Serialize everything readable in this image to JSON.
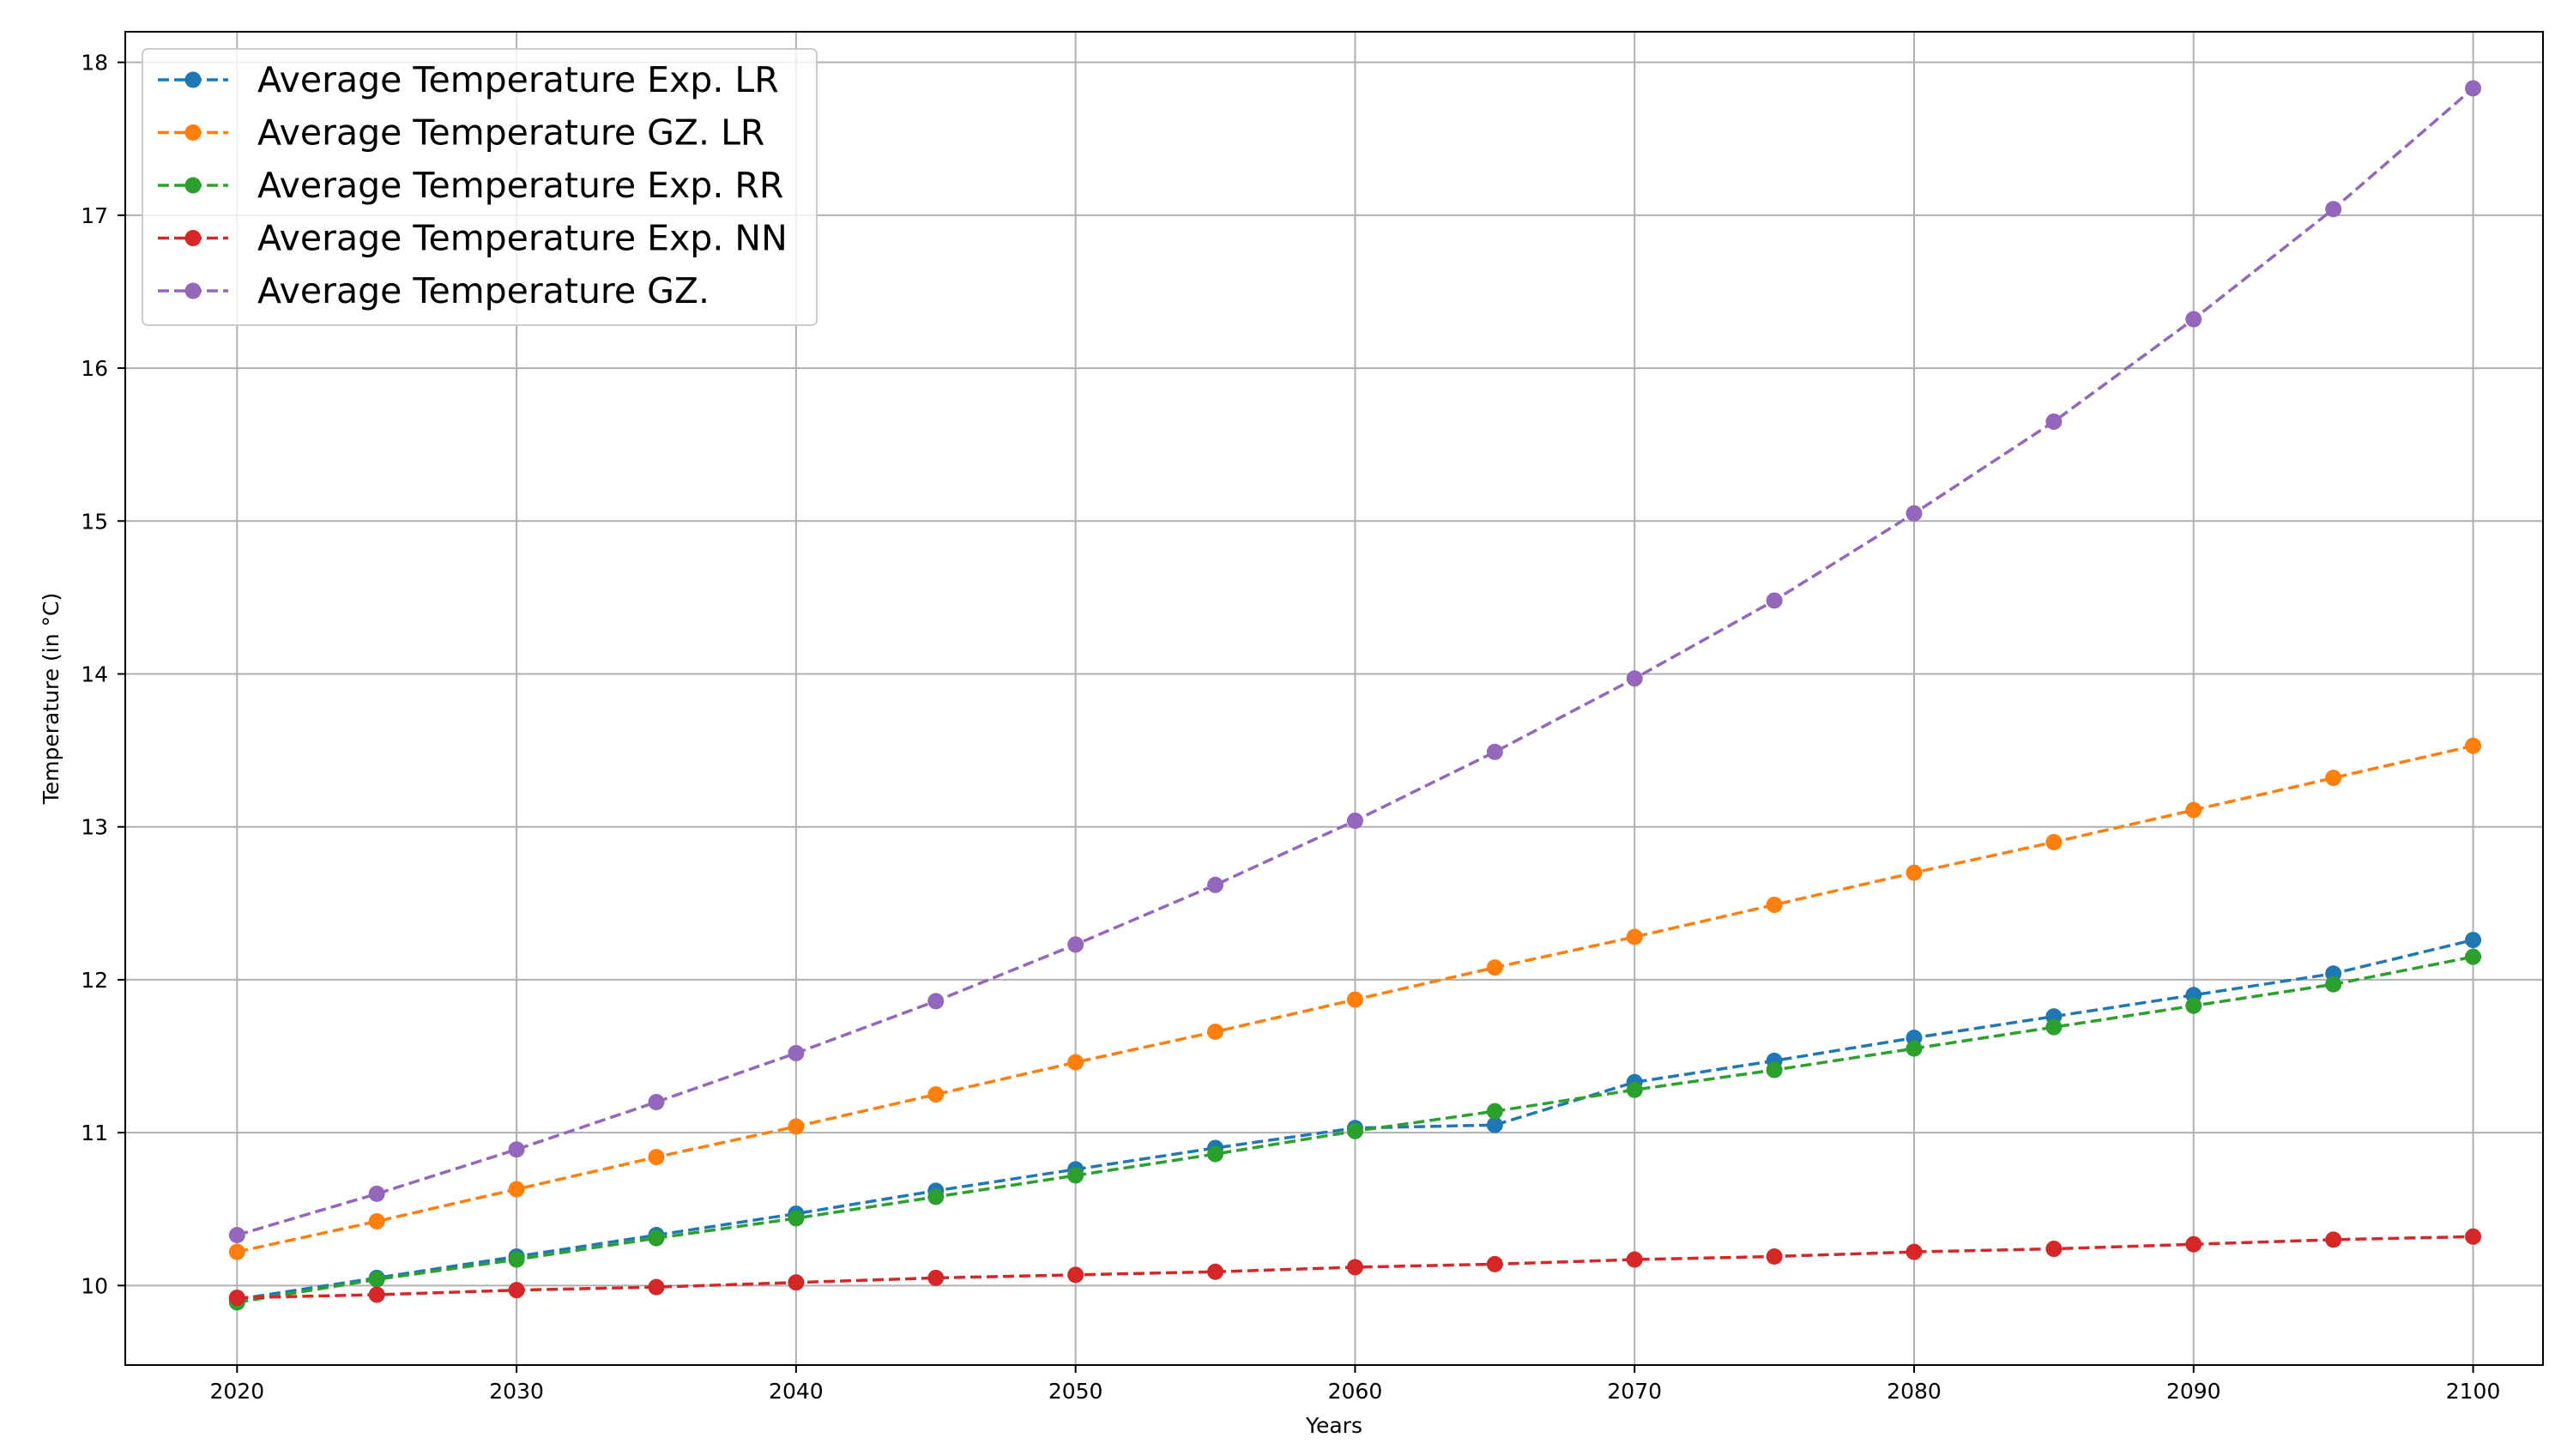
{
  "chart_data": {
    "type": "line",
    "title": "",
    "xlabel": "Years",
    "ylabel": "Temperature (in °C)",
    "xlim": [
      2016,
      2102.5
    ],
    "ylim": [
      9.48,
      18.2
    ],
    "xticks": [
      2020,
      2030,
      2040,
      2050,
      2060,
      2070,
      2080,
      2090,
      2100
    ],
    "yticks": [
      10,
      11,
      12,
      13,
      14,
      15,
      16,
      17,
      18
    ],
    "grid": true,
    "legend_position": "top-left",
    "line_style": "dashed",
    "marker": "circle",
    "x": [
      2020,
      2025,
      2030,
      2035,
      2040,
      2045,
      2050,
      2055,
      2060,
      2065,
      2070,
      2075,
      2080,
      2085,
      2090,
      2095,
      2100
    ],
    "series": [
      {
        "name": "Average Temperature Exp. LR",
        "color": "#1f77b4",
        "values": [
          9.91,
          10.05,
          10.19,
          10.33,
          10.47,
          10.62,
          10.76,
          10.9,
          11.03,
          11.05,
          11.33,
          11.47,
          11.62,
          11.76,
          11.9,
          12.04,
          12.26
        ]
      },
      {
        "name": "Average Temperature GZ. LR",
        "color": "#ff7f0e",
        "values": [
          10.22,
          10.42,
          10.63,
          10.84,
          11.04,
          11.25,
          11.46,
          11.66,
          11.87,
          12.08,
          12.28,
          12.49,
          12.7,
          12.9,
          13.11,
          13.32,
          13.53
        ]
      },
      {
        "name": "Average Temperature Exp. RR",
        "color": "#2ca02c",
        "values": [
          9.89,
          10.04,
          10.17,
          10.31,
          10.44,
          10.58,
          10.72,
          10.86,
          11.01,
          11.14,
          11.28,
          11.41,
          11.55,
          11.69,
          11.83,
          11.97,
          12.15
        ]
      },
      {
        "name": "Average Temperature Exp. NN",
        "color": "#d62728",
        "values": [
          9.92,
          9.94,
          9.97,
          9.99,
          10.02,
          10.05,
          10.07,
          10.09,
          10.12,
          10.14,
          10.17,
          10.19,
          10.22,
          10.24,
          10.27,
          10.3,
          10.32
        ]
      },
      {
        "name": "Average Temperature GZ.",
        "color": "#9467bd",
        "values": [
          10.33,
          10.6,
          10.89,
          11.2,
          11.52,
          11.86,
          12.23,
          12.62,
          13.04,
          13.49,
          13.97,
          14.48,
          15.05,
          15.65,
          16.32,
          17.04,
          17.83
        ]
      }
    ]
  }
}
